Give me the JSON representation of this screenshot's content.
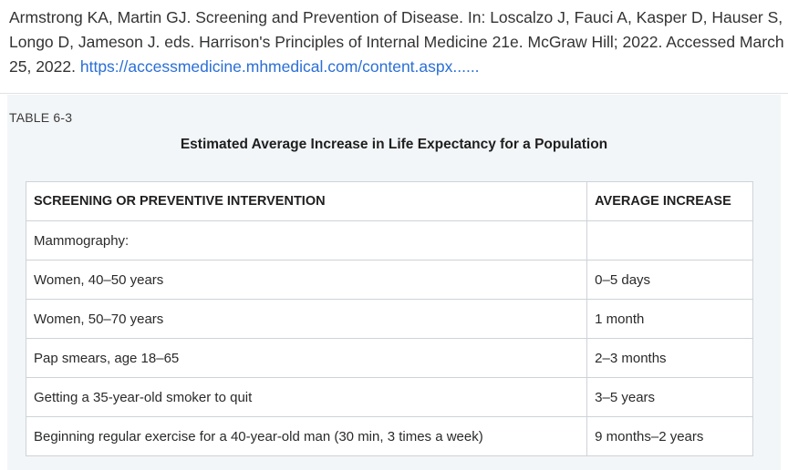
{
  "citation": {
    "text": "Armstrong KA, Martin GJ. Screening and Prevention of Disease. In: Loscalzo J, Fauci A, Kasper D, Hauser S, Longo D, Jameson J. eds. Harrison's Principles of Internal Medicine 21e. McGraw Hill; 2022. Accessed March 25, 2022.",
    "link": "https://accessmedicine.mhmedical.com/content.aspx......"
  },
  "table": {
    "label": "TABLE 6-3",
    "title": "Estimated Average Increase in Life Expectancy for a Population",
    "headers": [
      "SCREENING OR PREVENTIVE INTERVENTION",
      "AVERAGE INCREASE"
    ],
    "rows": [
      {
        "intervention": "Mammography:",
        "increase": ""
      },
      {
        "intervention": "Women, 40–50 years",
        "increase": "0–5 days"
      },
      {
        "intervention": "Women, 50–70 years",
        "increase": "1 month"
      },
      {
        "intervention": "Pap smears, age 18–65",
        "increase": "2–3 months"
      },
      {
        "intervention": "Getting a 35-year-old smoker to quit",
        "increase": "3–5 years"
      },
      {
        "intervention": "Beginning regular exercise for a 40-year-old man (30 min, 3 times a week)",
        "increase": "9 months–2 years"
      }
    ]
  }
}
